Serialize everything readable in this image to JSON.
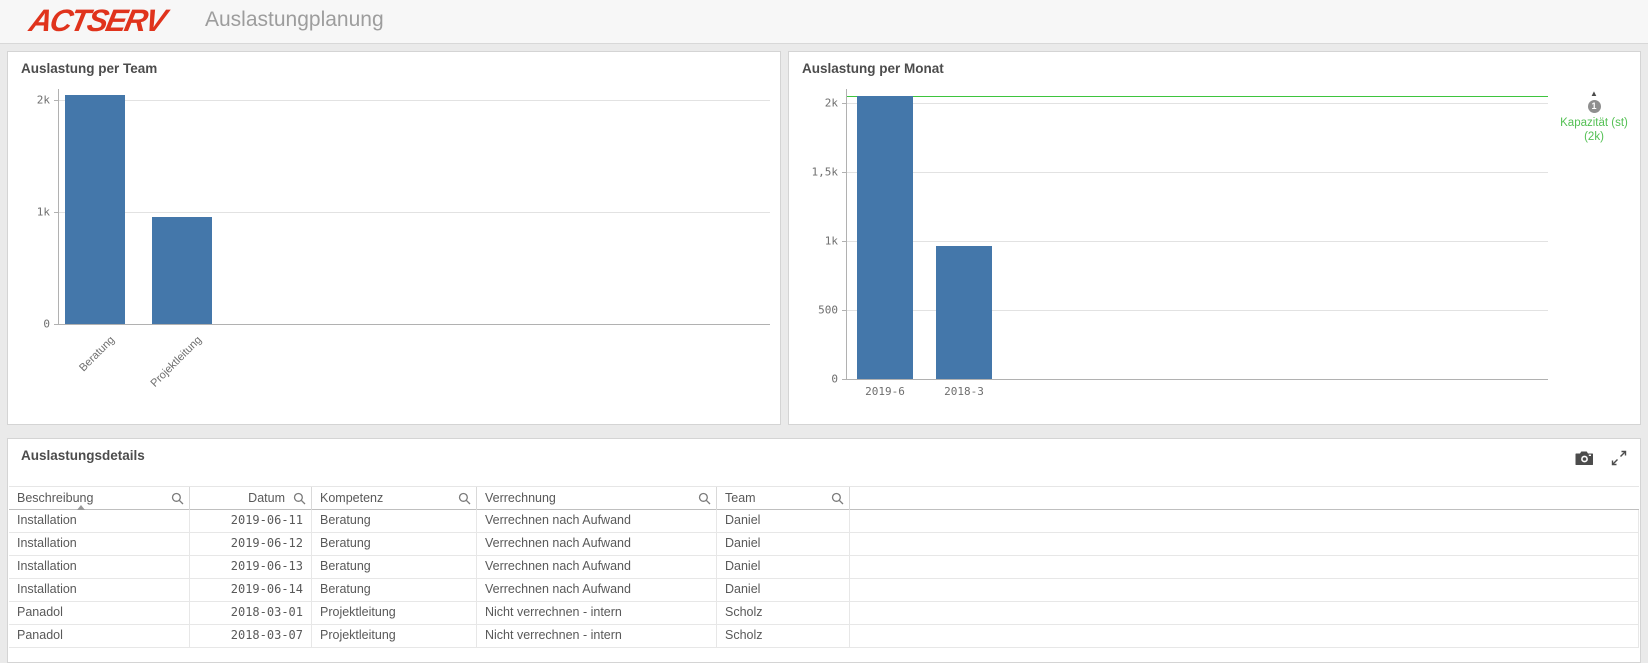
{
  "header": {
    "logo_text": "ACTSERV",
    "app_title": "Auslastungplanung"
  },
  "colors": {
    "bar_blue": "#4477aa",
    "ref_line_green": "#3ec43e",
    "ref_text_green": "#54c054",
    "logo_red": "#e0331c"
  },
  "chart_data": [
    {
      "type": "bar",
      "title": "Auslastung per Team",
      "categories": [
        "Beratung",
        "Projektleitung"
      ],
      "values": [
        2050,
        960
      ],
      "xlabel": "",
      "ylabel": "",
      "ylim": [
        0,
        2100
      ],
      "yticks": [
        {
          "value": 0,
          "label": "0"
        },
        {
          "value": 1000,
          "label": "1k"
        },
        {
          "value": 2000,
          "label": "2k"
        }
      ],
      "grid": [
        1000,
        2000
      ],
      "x_label_rotation": -45,
      "legend": "none"
    },
    {
      "type": "bar",
      "title": "Auslastung per Monat",
      "categories": [
        "2019-6",
        "2018-3"
      ],
      "values": [
        2050,
        960
      ],
      "xlabel": "",
      "ylabel": "",
      "ylim": [
        0,
        2100
      ],
      "yticks": [
        {
          "value": 0,
          "label": "0"
        },
        {
          "value": 500,
          "label": "500"
        },
        {
          "value": 1000,
          "label": "1k"
        },
        {
          "value": 1500,
          "label": "1,5k"
        },
        {
          "value": 2000,
          "label": "2k"
        }
      ],
      "grid": [
        500,
        1000,
        1500,
        2000
      ],
      "x_label_rotation": 0,
      "legend": "none",
      "refline": {
        "value": 2050,
        "badge": "1",
        "label_line1": "Kapazität (st)",
        "label_line2": "(2k)"
      }
    }
  ],
  "table": {
    "title": "Auslastungsdetails",
    "columns": [
      {
        "label": "Beschreibung",
        "sorted": "asc"
      },
      {
        "label": "Datum",
        "align": "right"
      },
      {
        "label": "Kompetenz"
      },
      {
        "label": "Verrechnung"
      },
      {
        "label": "Team"
      }
    ],
    "rows": [
      [
        "Installation",
        "2019-06-11",
        "Beratung",
        "Verrechnen nach Aufwand",
        "Daniel"
      ],
      [
        "Installation",
        "2019-06-12",
        "Beratung",
        "Verrechnen nach Aufwand",
        "Daniel"
      ],
      [
        "Installation",
        "2019-06-13",
        "Beratung",
        "Verrechnen nach Aufwand",
        "Daniel"
      ],
      [
        "Installation",
        "2019-06-14",
        "Beratung",
        "Verrechnen nach Aufwand",
        "Daniel"
      ],
      [
        "Panadol",
        "2018-03-01",
        "Projektleitung",
        "Nicht verrechnen - intern",
        "Scholz"
      ],
      [
        "Panadol",
        "2018-03-07",
        "Projektleitung",
        "Nicht verrechnen - intern",
        "Scholz"
      ]
    ]
  }
}
